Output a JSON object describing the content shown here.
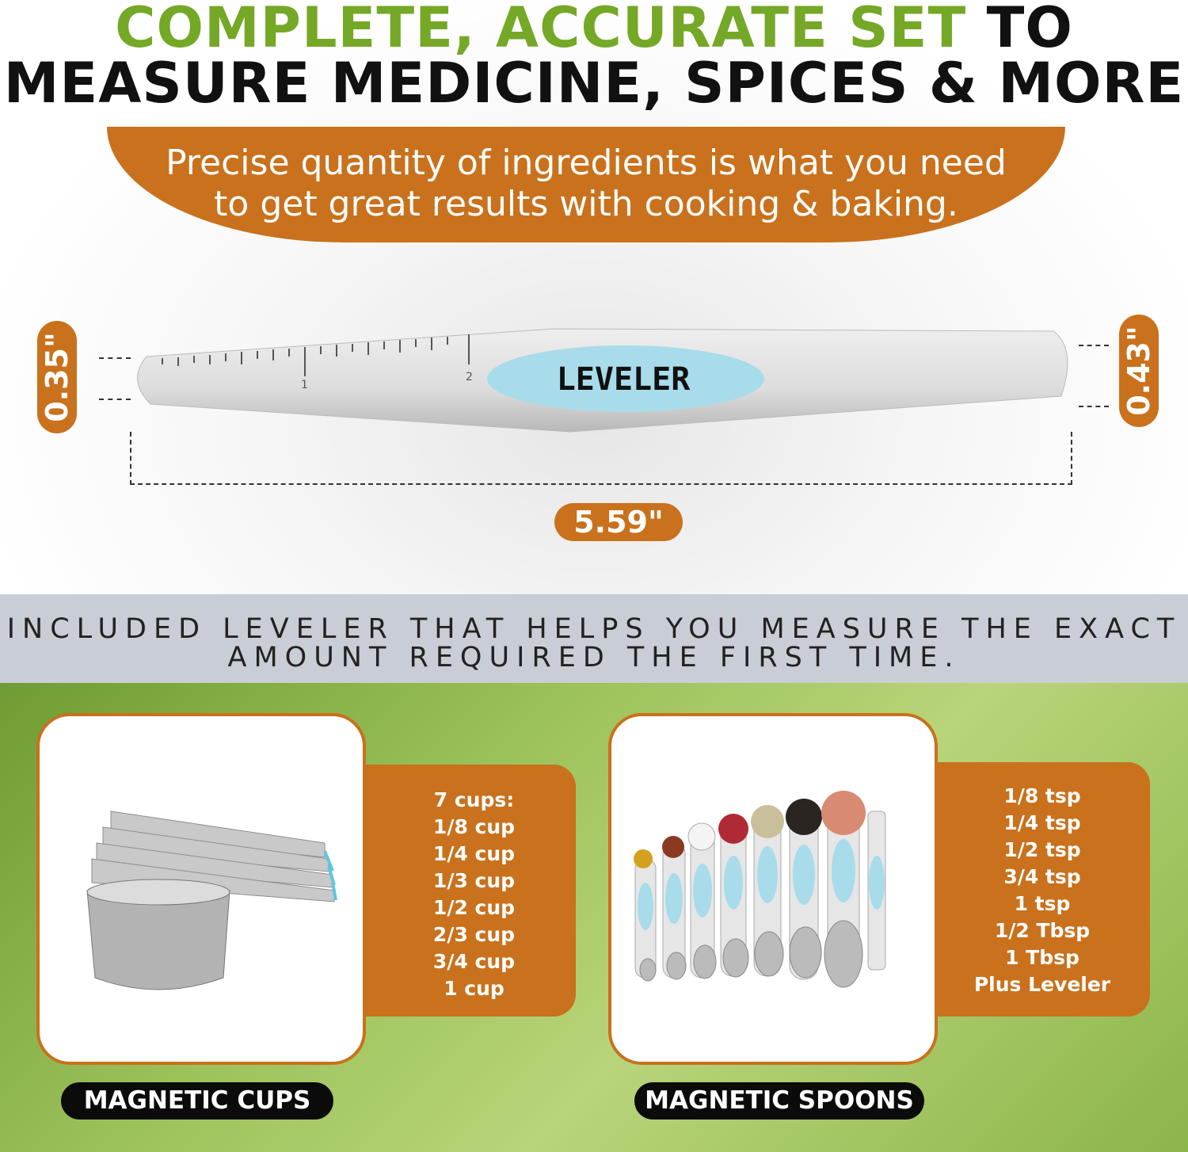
{
  "headline": {
    "green": "COMPLETE, ACCURATE SET",
    "black_inline": " TO",
    "line2": "MEASURE MEDICINE, SPICES & MORE"
  },
  "banner": {
    "line1": "Precise quantity of ingredients is what you need",
    "line2": "to get great results with cooking & baking."
  },
  "leveler": {
    "label": "LEVELER",
    "scale_marks": [
      "1",
      "2"
    ],
    "height_left": "0.35\"",
    "height_right": "0.43\"",
    "length": "5.59\""
  },
  "band": {
    "line1": "INCLUDED LEVELER THAT HELPS YOU MEASURE THE EXACT",
    "line2": "AMOUNT REQUIRED THE FIRST TIME."
  },
  "cups": {
    "title": "7 cups:",
    "items": [
      "1/8 cup",
      "1/4 cup",
      "1/3 cup",
      "1/2 cup",
      "2/3 cup",
      "3/4 cup",
      "1 cup"
    ],
    "label": "MAGNETIC CUPS"
  },
  "spoons": {
    "items": [
      "1/8 tsp",
      "1/4 tsp",
      "1/2 tsp",
      "3/4 tsp",
      "1 tsp",
      "1/2 Tbsp",
      "1 Tbsp",
      "Plus Leveler"
    ],
    "label": "MAGNETIC SPOONS"
  },
  "colors": {
    "green": "#74a826",
    "orange": "#c9711c",
    "band": "#c9ced6",
    "accent_blue": "#a8dcea"
  }
}
